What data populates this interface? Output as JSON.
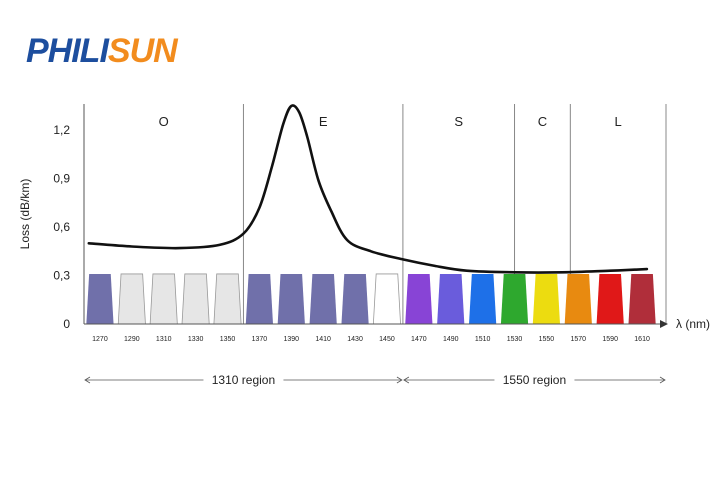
{
  "logo": {
    "text": "PHILISUN",
    "colors": {
      "blue": "#1d4e9e",
      "orange": "#f28c1e"
    }
  },
  "chart_data": {
    "type": "line",
    "title": "",
    "xlabel": "λ (nm)",
    "ylabel": "Loss (dB/km)",
    "ylim": [
      0,
      1.35
    ],
    "yticks": [
      {
        "value": 0,
        "label": "0"
      },
      {
        "value": 0.3,
        "label": "0,3"
      },
      {
        "value": 0.6,
        "label": "0,6"
      },
      {
        "value": 0.9,
        "label": "0,9"
      },
      {
        "value": 1.2,
        "label": "1,2"
      }
    ],
    "xlim": [
      1260,
      1620
    ],
    "bands": [
      {
        "label": "O",
        "start": 1260,
        "end": 1360
      },
      {
        "label": "E",
        "start": 1360,
        "end": 1460
      },
      {
        "label": "S",
        "start": 1460,
        "end": 1530
      },
      {
        "label": "C",
        "start": 1530,
        "end": 1565
      },
      {
        "label": "L",
        "start": 1565,
        "end": 1625
      }
    ],
    "channels": [
      {
        "wavelength": 1270,
        "label": "1270",
        "color": "#7070aa"
      },
      {
        "wavelength": 1290,
        "label": "1290",
        "color": "#e6e6e6"
      },
      {
        "wavelength": 1310,
        "label": "1310",
        "color": "#e6e6e6"
      },
      {
        "wavelength": 1330,
        "label": "1330",
        "color": "#e6e6e6"
      },
      {
        "wavelength": 1350,
        "label": "1350",
        "color": "#e6e6e6"
      },
      {
        "wavelength": 1370,
        "label": "1370",
        "color": "#7070aa"
      },
      {
        "wavelength": 1390,
        "label": "1390",
        "color": "#7070aa"
      },
      {
        "wavelength": 1410,
        "label": "1410",
        "color": "#7070aa"
      },
      {
        "wavelength": 1430,
        "label": "1430",
        "color": "#7070aa"
      },
      {
        "wavelength": 1450,
        "label": "1450",
        "color": "#ffffff"
      },
      {
        "wavelength": 1470,
        "label": "1470",
        "color": "#8844d6"
      },
      {
        "wavelength": 1490,
        "label": "1490",
        "color": "#6a5cdc"
      },
      {
        "wavelength": 1510,
        "label": "1510",
        "color": "#1e70e8"
      },
      {
        "wavelength": 1530,
        "label": "1530",
        "color": "#2ea82e"
      },
      {
        "wavelength": 1550,
        "label": "1550",
        "color": "#ecdc10"
      },
      {
        "wavelength": 1570,
        "label": "1570",
        "color": "#e88a10"
      },
      {
        "wavelength": 1590,
        "label": "1590",
        "color": "#e01818"
      },
      {
        "wavelength": 1610,
        "label": "1610",
        "color": "#b02e3a"
      }
    ],
    "channel_level": 0.31,
    "loss_curve": {
      "x": [
        1263,
        1290,
        1320,
        1345,
        1360,
        1370,
        1378,
        1385,
        1390,
        1395,
        1400,
        1407,
        1415,
        1425,
        1440,
        1460,
        1480,
        1500,
        1530,
        1560,
        1590,
        1613
      ],
      "y": [
        0.5,
        0.48,
        0.47,
        0.49,
        0.56,
        0.72,
        0.98,
        1.24,
        1.35,
        1.31,
        1.16,
        0.89,
        0.7,
        0.52,
        0.45,
        0.4,
        0.36,
        0.33,
        0.32,
        0.32,
        0.33,
        0.34
      ]
    },
    "regions": [
      {
        "label": "1310 region",
        "start": 1260,
        "end": 1460
      },
      {
        "label": "1550 region",
        "start": 1460,
        "end": 1625
      }
    ]
  }
}
